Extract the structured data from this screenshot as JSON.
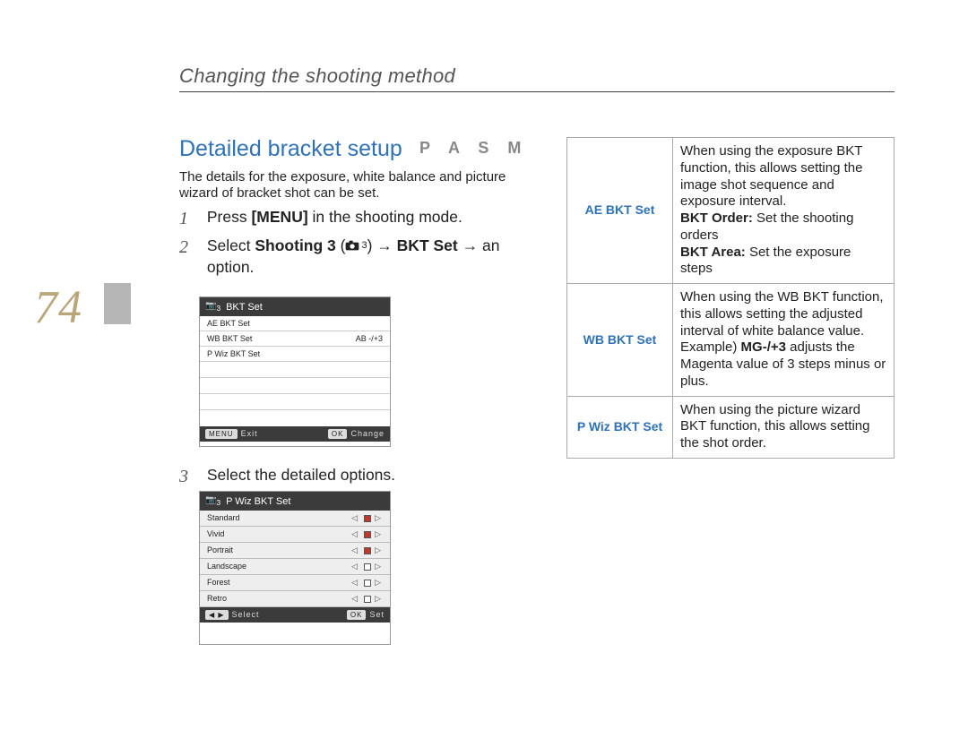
{
  "colors": {
    "accent_blue": "#2f72b5",
    "pagenum_gold": "#b9a77a",
    "sidebar_gray": "#b6b6b6",
    "lcd_header_bg": "#3b3b3b",
    "table_border": "#aaaaaa"
  },
  "page_number": "74",
  "header_title": "Changing the shooting method",
  "section": {
    "title": "Detailed bracket setup",
    "modes": "P A S M",
    "description": "The details for the exposure, white balance and picture wizard of bracket shot can be set."
  },
  "steps": {
    "s1_num": "1",
    "s1_a": "Press ",
    "s1_b": "[MENU]",
    "s1_c": " in the shooting mode.",
    "s2_num": "2",
    "s2_a": "Select ",
    "s2_b": "Shooting 3",
    "s2_c": " (",
    "s2_icon_sub": "3",
    "s2_d": ") → ",
    "s2_e": "BKT Set",
    "s2_f": " → an option.",
    "s3_num": "3",
    "s3_a": "Select the detailed options."
  },
  "lcd1": {
    "header_icon_sub": "3",
    "header_title": "BKT Set",
    "rows": [
      {
        "label": "AE BKT Set",
        "value": ""
      },
      {
        "label": "WB BKT Set",
        "value": "AB -/+3"
      },
      {
        "label": "P Wiz BKT Set",
        "value": ""
      }
    ],
    "footer_left_btn": "MENU",
    "footer_left_label": "Exit",
    "footer_right_btn": "OK",
    "footer_right_label": "Change"
  },
  "lcd2": {
    "header_icon_sub": "3",
    "header_title": "P Wiz BKT Set",
    "rows": [
      {
        "label": "Standard",
        "marker": "red"
      },
      {
        "label": "Vivid",
        "marker": "red"
      },
      {
        "label": "Portrait",
        "marker": "red"
      },
      {
        "label": "Landscape",
        "marker": "gray"
      },
      {
        "label": "Forest",
        "marker": "gray"
      },
      {
        "label": "Retro",
        "marker": "gray"
      }
    ],
    "footer_left_btn": "◀ ▶",
    "footer_left_label": "Select",
    "footer_right_btn": "OK",
    "footer_right_label": "Set"
  },
  "rtable": {
    "rows": [
      {
        "label": "AE BKT Set",
        "desc_a": "When using the exposure BKT function, this allows setting the image shot sequence and exposure interval.",
        "desc_b_bold": "BKT Order:",
        "desc_b_rest": " Set the shooting orders",
        "desc_c_bold": "BKT Area:",
        "desc_c_rest": " Set the exposure steps"
      },
      {
        "label": "WB BKT Set",
        "desc_a": "When using the WB  BKT function, this allows setting the adjusted interval of white balance value.",
        "desc_b_prefix": "Example) ",
        "desc_b_bold": "MG-/+3",
        "desc_b_rest": " adjusts the Magenta value of 3 steps minus or plus."
      },
      {
        "label": "P Wiz BKT Set",
        "desc_a": "When using the picture wizard BKT function, this allows setting the shot order."
      }
    ]
  }
}
